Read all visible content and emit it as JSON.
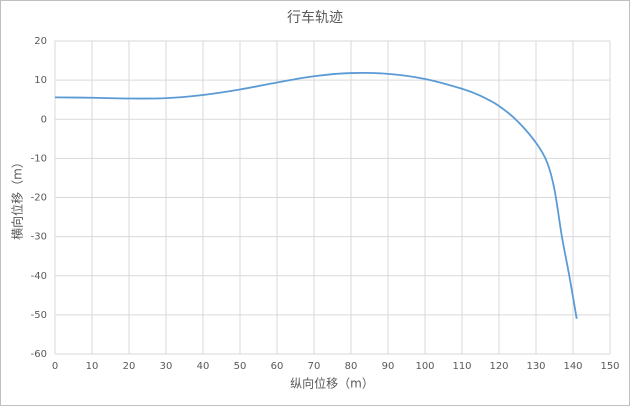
{
  "chart_data": {
    "type": "line",
    "title": "行车轨迹",
    "x_label": "纵向位移（m）",
    "y_label": "横向位移（m）",
    "x": [
      0,
      10,
      20,
      30,
      40,
      50,
      60,
      70,
      80,
      90,
      100,
      110,
      115,
      120,
      125,
      130,
      133,
      135,
      137,
      139,
      141
    ],
    "series": [
      {
        "name": "行车轨迹",
        "color": "#5b9bd5",
        "values": [
          5.6,
          5.5,
          5.3,
          5.4,
          6.2,
          7.6,
          9.4,
          11,
          11.8,
          11.6,
          10.3,
          7.8,
          6,
          3.4,
          -0.5,
          -6,
          -11,
          -18,
          -30,
          -40,
          -51
        ]
      }
    ],
    "xlim": [
      0,
      150
    ],
    "xticks": [
      0,
      10,
      20,
      30,
      40,
      50,
      60,
      70,
      80,
      90,
      100,
      110,
      120,
      130,
      140,
      150
    ],
    "ylim": [
      -60,
      20
    ],
    "yticks": [
      -60,
      -50,
      -40,
      -30,
      -20,
      -10,
      0,
      10,
      20
    ],
    "grid": true
  }
}
